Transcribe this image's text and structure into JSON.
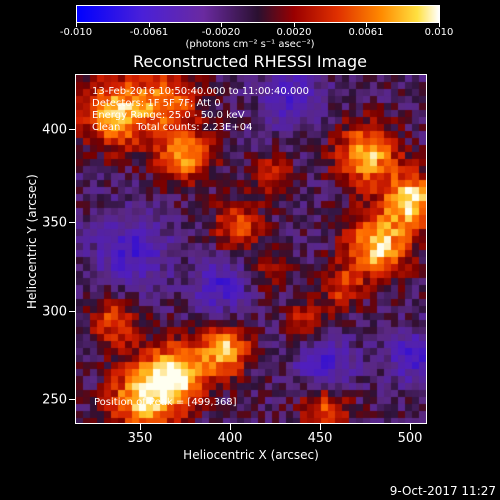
{
  "colorbar": {
    "tick_labels": [
      "-0.010",
      "-0.0061",
      "-0.0020",
      "0.0020",
      "0.0061",
      "0.010"
    ],
    "units": "(photons cm⁻² s⁻¹ asec⁻²)"
  },
  "title": "Reconstructed RHESSI Image",
  "info": {
    "time": "13-Feb-2016 10:50:40.000 to 11:00:40.000",
    "detectors": "Detectors: 1F 5F 7F; Att 0",
    "energy": "Energy Range: 25.0 - 50.0 keV",
    "clean": "Clean     Total counts: 2.23E+04"
  },
  "peak_position": "Position of Peak = [499,368]",
  "axes": {
    "xlabel": "Heliocentric X (arcsec)",
    "ylabel": "Heliocentric Y (arcsec)",
    "xlim": [
      318,
      505
    ],
    "ylim": [
      235,
      432
    ],
    "xticks": [
      "350",
      "400",
      "450",
      "500"
    ],
    "yticks": [
      "250",
      "300",
      "350",
      "400"
    ]
  },
  "timestamp": "9-Oct-2017 11:27",
  "colors": {
    "background": "#000000",
    "foreground": "#ffffff"
  }
}
